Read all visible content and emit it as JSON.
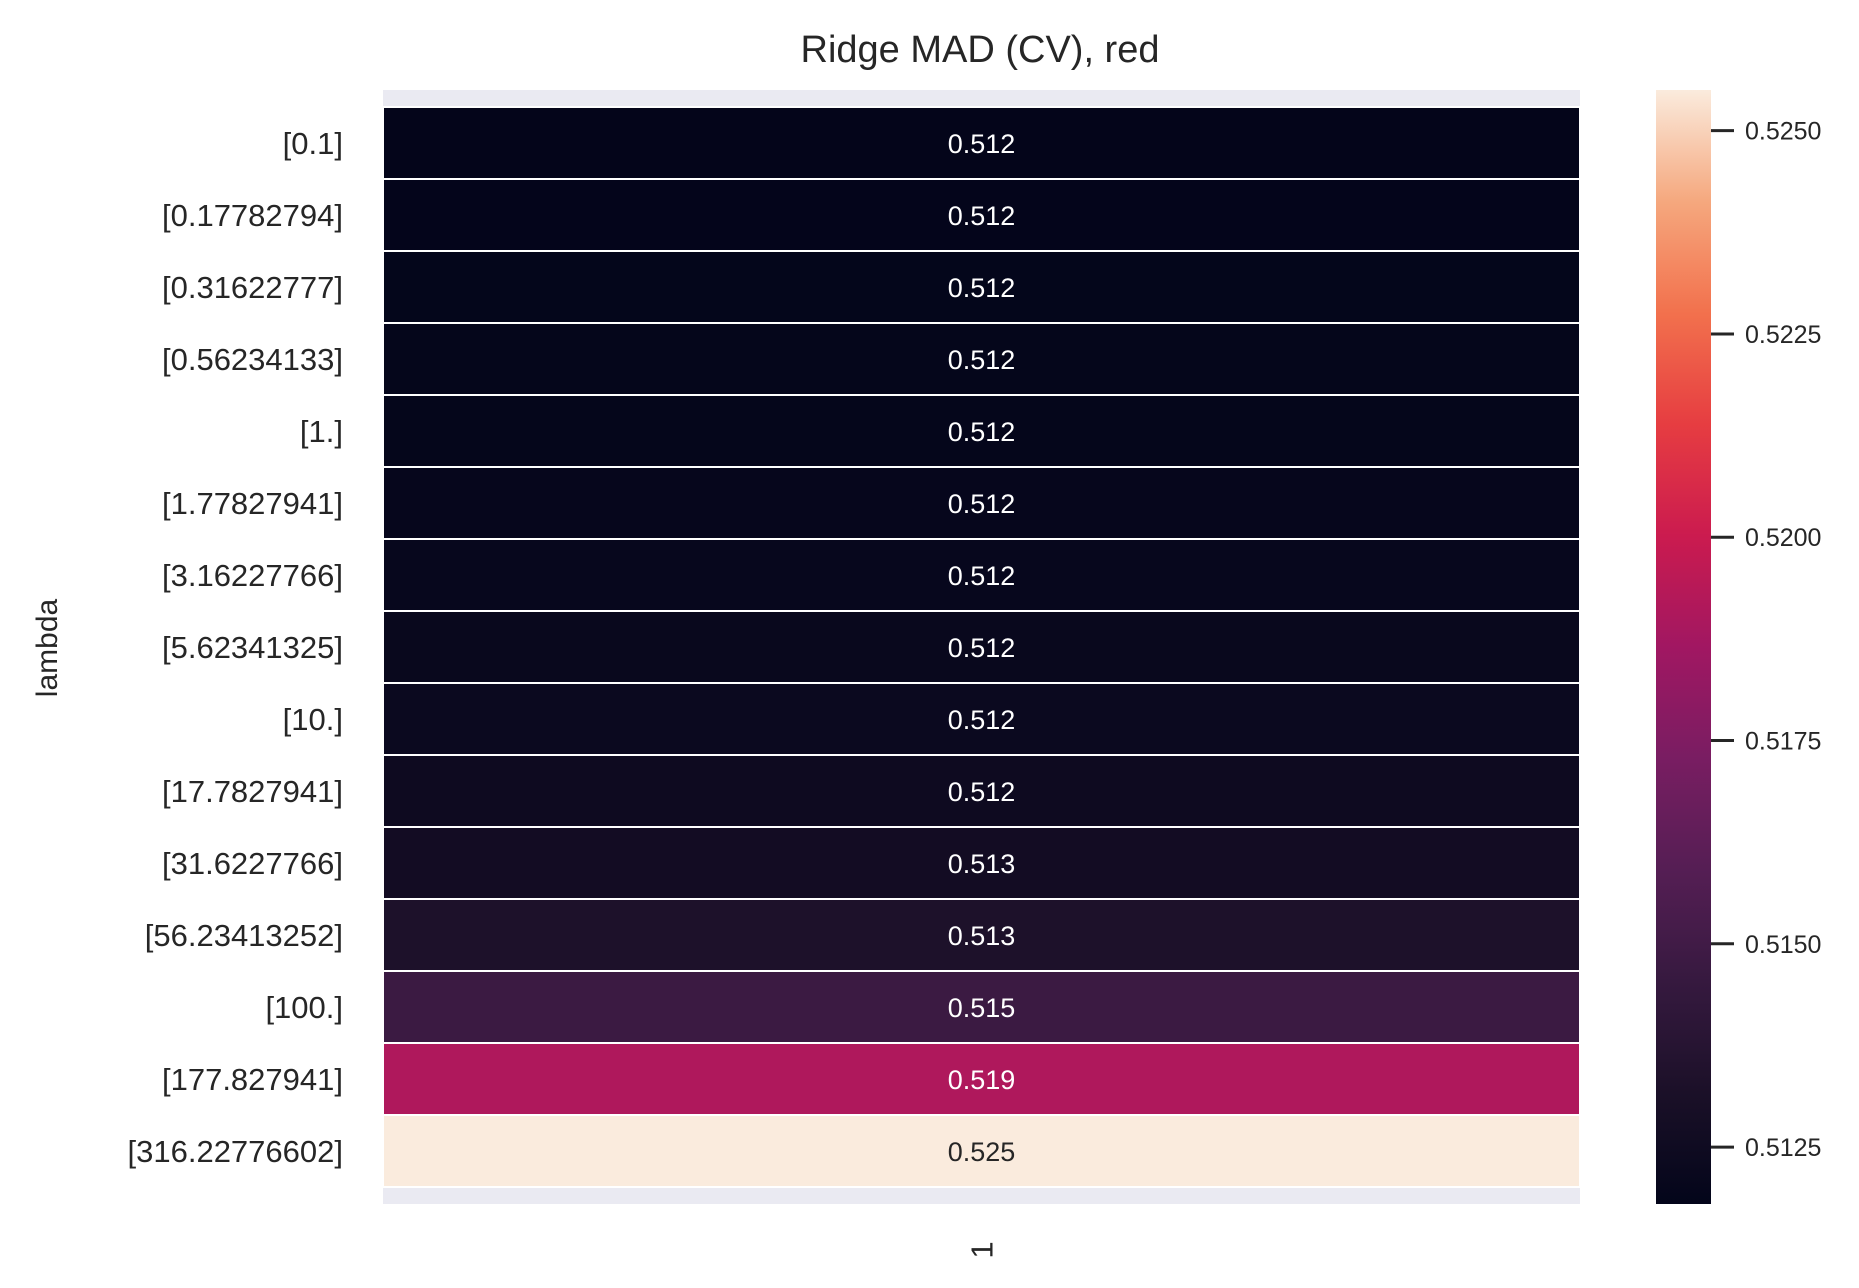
{
  "chart_data": {
    "type": "heatmap",
    "title": "Ridge MAD (CV), red",
    "ylabel": "lambda",
    "xlabel": "",
    "x_categories": [
      "1"
    ],
    "y_categories": [
      "[0.1]",
      "[0.17782794]",
      "[0.31622777]",
      "[0.56234133]",
      "[1.]",
      "[1.77827941]",
      "[3.16227766]",
      "[5.62341325]",
      "[10.]",
      "[17.7827941]",
      "[31.6227766]",
      "[56.23413252]",
      "[100.]",
      "[177.827941]",
      "[316.22776602]"
    ],
    "values": [
      0.51184,
      0.51185,
      0.51187,
      0.51189,
      0.51193,
      0.51198,
      0.51205,
      0.51213,
      0.51225,
      0.51243,
      0.51272,
      0.51328,
      0.51475,
      0.5191,
      0.5255
    ],
    "cell_labels": [
      "0.512",
      "0.512",
      "0.512",
      "0.512",
      "0.512",
      "0.512",
      "0.512",
      "0.512",
      "0.512",
      "0.512",
      "0.513",
      "0.513",
      "0.515",
      "0.519",
      "0.525"
    ],
    "colormap": "rocket",
    "colorbar": {
      "min": 0.5118,
      "max": 0.5255,
      "ticks": [
        0.5125,
        0.515,
        0.5175,
        0.52,
        0.5225,
        0.525
      ],
      "tick_labels": [
        "0.5125",
        "0.5150",
        "0.5175",
        "0.5200",
        "0.5225",
        "0.5250"
      ]
    },
    "grid": true,
    "background": "#eaeaf2"
  }
}
